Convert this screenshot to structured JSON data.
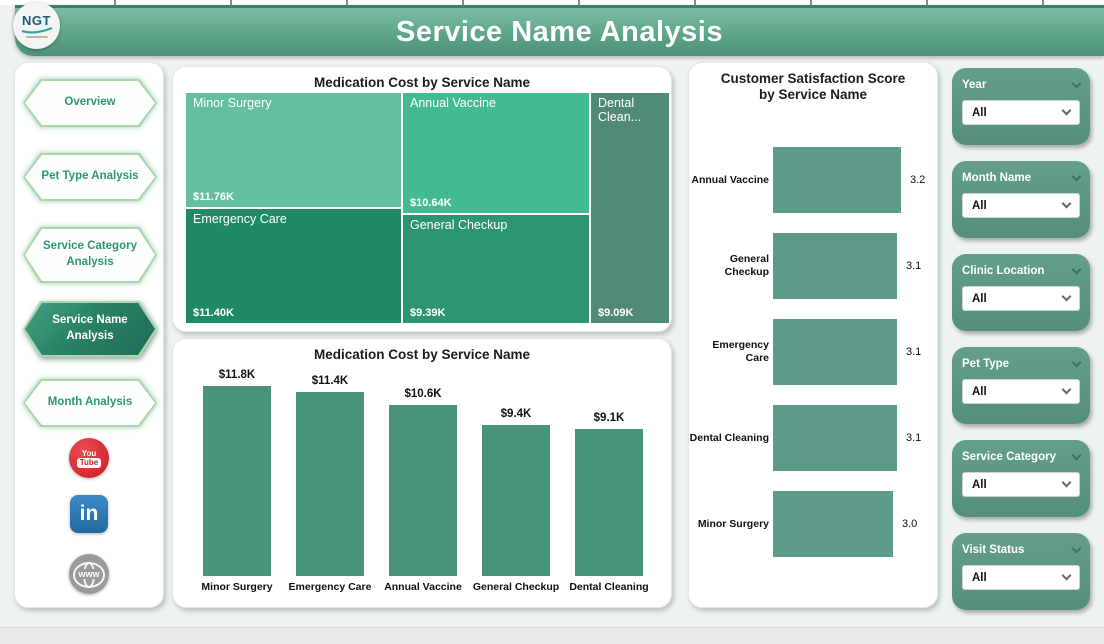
{
  "header": {
    "logo_text": "NGT",
    "title": "Service Name Analysis"
  },
  "sidebar": {
    "items": [
      {
        "label": "Overview",
        "active": false
      },
      {
        "label": "Pet Type Analysis",
        "active": false
      },
      {
        "label": "Service Category Analysis",
        "active": false
      },
      {
        "label": "Service Name Analysis",
        "active": true
      },
      {
        "label": "Month Analysis",
        "active": false
      }
    ],
    "social": [
      {
        "name": "youtube",
        "text_top": "You",
        "text_bottom": "Tube",
        "color": "#c81e25"
      },
      {
        "name": "linkedin",
        "text": "in",
        "color": "#2d7ab8"
      },
      {
        "name": "web",
        "text": "www",
        "color": "#9b9b9b"
      }
    ]
  },
  "chart_data": [
    {
      "type": "treemap",
      "title": "Medication Cost by Service Name",
      "items": [
        {
          "name": "Minor Surgery",
          "value": 11760,
          "label": "$11.76K",
          "color": "#63bf9e"
        },
        {
          "name": "Annual Vaccine",
          "value": 10640,
          "label": "$10.64K",
          "color": "#44ba90"
        },
        {
          "name": "Dental Cleaning",
          "display_name": "Dental Clean...",
          "value": 9090,
          "label": "$9.09K",
          "color": "#4f8b74"
        },
        {
          "name": "Emergency Care",
          "value": 11400,
          "label": "$11.40K",
          "color": "#1f8a64"
        },
        {
          "name": "General Checkup",
          "value": 9390,
          "label": "$9.39K",
          "color": "#2e9573"
        }
      ]
    },
    {
      "type": "bar",
      "title": "Medication Cost by Service Name",
      "categories": [
        "Minor Surgery",
        "Emergency Care",
        "Annual Vaccine",
        "General Checkup",
        "Dental Cleaning"
      ],
      "values": [
        11800,
        11400,
        10600,
        9400,
        9100
      ],
      "labels": [
        "$11.8K",
        "$11.4K",
        "$10.6K",
        "$9.4K",
        "$9.1K"
      ],
      "bar_color": "#48947b",
      "ylabel": "",
      "xlabel": "",
      "ylim": [
        0,
        11800
      ],
      "grid": false,
      "legend": false
    },
    {
      "type": "bar-horizontal",
      "title": "Customer Satisfaction Score by Service Name",
      "categories": [
        "Annual Vaccine",
        "General Checkup",
        "Emergency Care",
        "Dental Cleaning",
        "Minor Surgery"
      ],
      "values": [
        3.2,
        3.1,
        3.1,
        3.1,
        3.0
      ],
      "labels": [
        "3.2",
        "3.1",
        "3.1",
        "3.1",
        "3.0"
      ],
      "bar_color": "#5e9a89",
      "xlim": [
        0,
        3.2
      ],
      "grid": false,
      "legend": false
    }
  ],
  "filters": {
    "items": [
      {
        "label": "Year",
        "value": "All"
      },
      {
        "label": "Month Name",
        "value": "All"
      },
      {
        "label": "Clinic Location",
        "value": "All"
      },
      {
        "label": "Pet Type",
        "value": "All"
      },
      {
        "label": "Service Category",
        "value": "All"
      },
      {
        "label": "Visit Status",
        "value": "All"
      }
    ]
  },
  "colors": {
    "accent": "#4e9177",
    "header_top": "#7cbda4",
    "header_bottom": "#4e9177",
    "nav_text": "#2e9672",
    "filter_card": "#5b9a84"
  }
}
